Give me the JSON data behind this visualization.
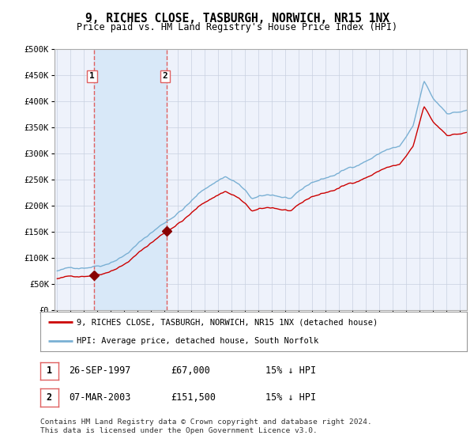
{
  "title": "9, RICHES CLOSE, TASBURGH, NORWICH, NR15 1NX",
  "subtitle": "Price paid vs. HM Land Registry's House Price Index (HPI)",
  "ylim": [
    0,
    500000
  ],
  "yticks": [
    0,
    50000,
    100000,
    150000,
    200000,
    250000,
    300000,
    350000,
    400000,
    450000,
    500000
  ],
  "ytick_labels": [
    "£0",
    "£50K",
    "£100K",
    "£150K",
    "£200K",
    "£250K",
    "£300K",
    "£350K",
    "£400K",
    "£450K",
    "£500K"
  ],
  "background_color": "#ffffff",
  "plot_bg_color": "#eef2fb",
  "grid_color": "#c8d0e0",
  "purchases": [
    {
      "date_num": 1997.74,
      "price": 67000,
      "label": "1"
    },
    {
      "date_num": 2003.18,
      "price": 151500,
      "label": "2"
    }
  ],
  "legend_entry1": "9, RICHES CLOSE, TASBURGH, NORWICH, NR15 1NX (detached house)",
  "legend_entry2": "HPI: Average price, detached house, South Norfolk",
  "table_rows": [
    {
      "num": "1",
      "date": "26-SEP-1997",
      "price": "£67,000",
      "note": "15% ↓ HPI"
    },
    {
      "num": "2",
      "date": "07-MAR-2003",
      "price": "£151,500",
      "note": "15% ↓ HPI"
    }
  ],
  "footer": "Contains HM Land Registry data © Crown copyright and database right 2024.\nThis data is licensed under the Open Government Licence v3.0.",
  "red_line_color": "#cc0000",
  "blue_line_color": "#7ab0d4",
  "marker_color": "#880000",
  "vline_color": "#e06060",
  "shade_color": "#d8e8f8",
  "xmin": 1994.8,
  "xmax": 2025.5,
  "xtick_years": [
    1995,
    1996,
    1997,
    1998,
    1999,
    2000,
    2001,
    2002,
    2003,
    2004,
    2005,
    2006,
    2007,
    2008,
    2009,
    2010,
    2011,
    2012,
    2013,
    2014,
    2015,
    2016,
    2017,
    2018,
    2019,
    2020,
    2021,
    2022,
    2023,
    2024,
    2025
  ]
}
